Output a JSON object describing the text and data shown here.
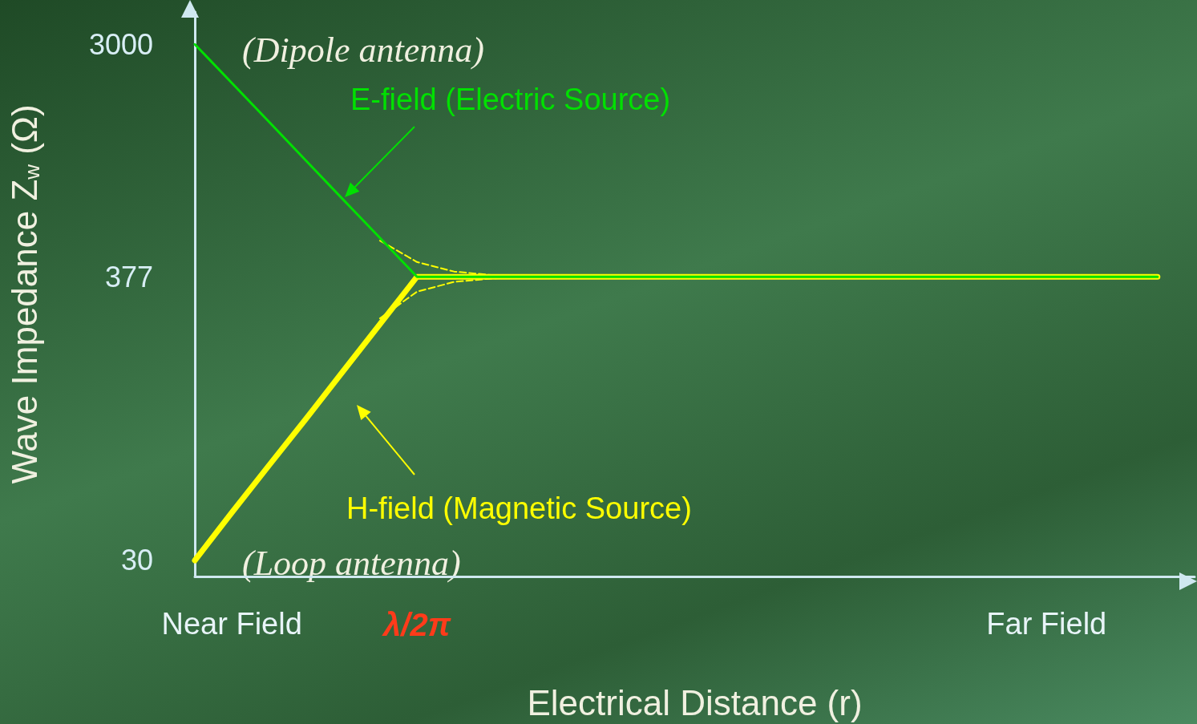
{
  "chart_data": {
    "type": "line",
    "xlabel": "Electrical Distance (r)",
    "ylabel": "Wave Impedance Z$_{w}$ (Ω)",
    "log": "y",
    "marker": "none",
    "categories": [
      null,
      "Near Field",
      null,
      null,
      null,
      null,
      "λ/2π",
      null,
      null,
      null,
      null,
      null,
      null,
      null,
      null,
      null,
      null,
      null,
      null,
      null,
      null,
      null,
      null,
      "Far Field",
      null,
      null,
      null,
      null
    ],
    "ylim": [
      26,
      4000
    ],
    "yticks": [
      30,
      377,
      3000
    ],
    "series": [
      {
        "name": "E-field (Electric Source)",
        "color": "#00e000",
        "line_style": "solid",
        "values": [
          3000,
          2123,
          1503,
          1063,
          752,
          533,
          377,
          377,
          377,
          377,
          377,
          377,
          377,
          377,
          377,
          377,
          377,
          377,
          377,
          377,
          377,
          377,
          377,
          377,
          377,
          377,
          377,
          null
        ]
      },
      {
        "name": "H-field (Magnetic Source)",
        "color": "#ffff00",
        "line_style": "solid",
        "values": [
          30,
          46,
          70,
          106,
          162,
          247,
          377,
          377,
          377,
          377,
          377,
          377,
          377,
          377,
          377,
          377,
          377,
          377,
          377,
          377,
          377,
          377,
          377,
          377,
          377,
          377,
          377,
          null
        ]
      },
      {
        "color": "#ffff00",
        "line_style": "dashed",
        "values": [
          null,
          null,
          null,
          null,
          null,
          520,
          430,
          395,
          383,
          377,
          null,
          null,
          null,
          null,
          null,
          null,
          null,
          null,
          null,
          null,
          null,
          null,
          null,
          null,
          null,
          null,
          null,
          null
        ]
      },
      {
        "color": "#ffff00",
        "line_style": "dashed",
        "values": [
          null,
          null,
          null,
          null,
          null,
          260,
          330,
          360,
          371,
          377,
          null,
          null,
          null,
          null,
          null,
          null,
          null,
          null,
          null,
          null,
          null,
          null,
          null,
          null,
          null,
          null,
          null,
          null
        ]
      }
    ],
    "annotations": [
      "(Dipole antenna)",
      "(Loop antenna)"
    ]
  }
}
